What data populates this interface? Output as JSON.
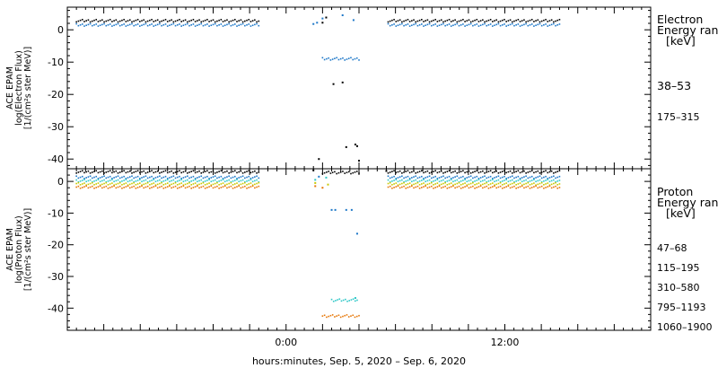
{
  "chart_data": [
    {
      "type": "scatter",
      "panel": "electron",
      "ylabel": [
        "ACE EPAM",
        "log(Electron Flux)",
        "[1/(cm²s ster MeV)]"
      ],
      "ylim": [
        -43,
        7
      ],
      "yticks": [
        0,
        -10,
        -20,
        -30,
        -40
      ],
      "legend_title": [
        "Electron",
        "Energy ran",
        "[keV]"
      ],
      "series": [
        {
          "name": "38–53",
          "color": "#000000",
          "segments": [
            {
              "x0": -11.5,
              "x1": -1.5,
              "y": 2.8
            },
            {
              "x0": 5.6,
              "x1": 15.0,
              "y": 2.8
            }
          ],
          "points": [
            [
              2.0,
              2.2
            ],
            [
              2.2,
              3.8
            ],
            [
              2.6,
              -16.8
            ],
            [
              3.1,
              -16.3
            ],
            [
              3.8,
              -35.5
            ],
            [
              3.9,
              -36.0
            ],
            [
              3.3,
              -36.3
            ],
            [
              4.0,
              -40.5
            ],
            [
              1.8,
              -40.0
            ]
          ]
        },
        {
          "name": "175–315",
          "color": "#1e78c8",
          "segments": [
            {
              "x0": -11.5,
              "x1": -1.5,
              "y": 1.5
            },
            {
              "x0": 5.6,
              "x1": 15.0,
              "y": 1.5
            },
            {
              "x0": 2.0,
              "x1": 4.0,
              "y": -9.0
            }
          ],
          "points": [
            [
              1.7,
              2.2
            ],
            [
              1.5,
              1.8
            ],
            [
              3.1,
              4.5
            ],
            [
              2.0,
              3.5
            ],
            [
              3.7,
              3.0
            ]
          ]
        }
      ]
    },
    {
      "type": "scatter",
      "panel": "proton",
      "ylabel": [
        "ACE EPAM",
        "log(Proton Flux)",
        "[1/(cm²s ster MeV)]"
      ],
      "ylim": [
        -47,
        4
      ],
      "yticks": [
        0,
        -10,
        -20,
        -30,
        -40
      ],
      "legend_title": [
        "Proton",
        "Energy ran",
        "[keV]"
      ],
      "series": [
        {
          "name": "47–68",
          "color": "#000000",
          "segments": [
            {
              "x0": -11.5,
              "x1": -1.5,
              "y": 3.0
            },
            {
              "x0": 5.6,
              "x1": 15.0,
              "y": 3.0
            },
            {
              "x0": 2.0,
              "x1": 4.0,
              "y": 2.8
            }
          ],
          "points": [
            [
              1.5,
              3.5
            ],
            [
              5.5,
              3.3
            ]
          ]
        },
        {
          "name": "115–195",
          "color": "#1e78c8",
          "segments": [
            {
              "x0": -11.5,
              "x1": -1.5,
              "y": 1.3
            },
            {
              "x0": 5.6,
              "x1": 15.0,
              "y": 1.3
            }
          ],
          "points": [
            [
              2.5,
              -9.0
            ],
            [
              2.7,
              -9.0
            ],
            [
              3.3,
              -9.0
            ],
            [
              3.6,
              -9.0
            ],
            [
              3.9,
              -16.5
            ],
            [
              1.8,
              1.5
            ]
          ]
        },
        {
          "name": "310–580",
          "color": "#30c8c8",
          "segments": [
            {
              "x0": -11.5,
              "x1": -1.5,
              "y": 0.2
            },
            {
              "x0": 5.6,
              "x1": 15.0,
              "y": 0.2
            },
            {
              "x0": 2.5,
              "x1": 3.9,
              "y": -37.5
            }
          ],
          "points": [
            [
              1.6,
              0.5
            ],
            [
              2.2,
              1.2
            ],
            [
              3.8,
              -36.8
            ]
          ]
        },
        {
          "name": "795–1193",
          "color": "#c8c800",
          "segments": [
            {
              "x0": -11.5,
              "x1": -1.5,
              "y": -0.8
            },
            {
              "x0": 5.6,
              "x1": 15.0,
              "y": -0.8
            }
          ],
          "points": [
            [
              1.6,
              -0.5
            ],
            [
              2.3,
              -1.0
            ]
          ]
        },
        {
          "name": "1060–1900",
          "color": "#e6780a",
          "segments": [
            {
              "x0": -11.5,
              "x1": -1.5,
              "y": -1.8
            },
            {
              "x0": 5.6,
              "x1": 15.0,
              "y": -1.8
            },
            {
              "x0": 2.0,
              "x1": 4.0,
              "y": -42.5
            }
          ],
          "points": [
            [
              1.6,
              -1.5
            ],
            [
              2.0,
              -2.0
            ]
          ]
        }
      ]
    }
  ],
  "x_axis": {
    "xlim": [
      -12,
      20
    ],
    "tick_labels": [
      {
        "x": 0,
        "label": "0:00"
      },
      {
        "x": 12,
        "label": "12:00"
      }
    ],
    "major_step": 2,
    "minor_step": 0.5,
    "xlabel": "hours:minutes, Sep.  5, 2020 – Sep.  6, 2020"
  }
}
